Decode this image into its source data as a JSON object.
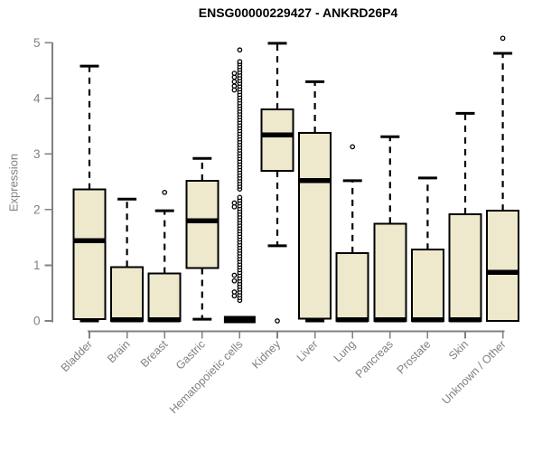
{
  "chart_data": {
    "type": "boxplot",
    "title": "ENSG00000229427 - ANKRD26P4",
    "ylabel": "Expression",
    "xlabel": "",
    "ylim": [
      0,
      5.35
    ],
    "yticks": [
      "0",
      "1",
      "2",
      "3",
      "4",
      "5"
    ],
    "grid": false,
    "legend": "none",
    "categories": [
      "Bladder",
      "Brain",
      "Breast",
      "Gastric",
      "Hematopoietic cells",
      "Kidney",
      "Liver",
      "Lung",
      "Pancreas",
      "Prostate",
      "Skin",
      "Unknown / Other"
    ],
    "series": [
      {
        "name": "Bladder",
        "lo": 0,
        "q1": 0.03,
        "med": 1.44,
        "q3": 2.36,
        "hi": 4.58,
        "outliers": []
      },
      {
        "name": "Brain",
        "lo": 0,
        "q1": 0,
        "med": 0.02,
        "q3": 0.97,
        "hi": 2.19,
        "outliers": []
      },
      {
        "name": "Breast",
        "lo": 0,
        "q1": 0,
        "med": 0.02,
        "q3": 0.85,
        "hi": 1.98,
        "outliers": [
          2.31
        ]
      },
      {
        "name": "Gastric",
        "lo": 0.03,
        "q1": 0.95,
        "med": 1.8,
        "q3": 2.52,
        "hi": 2.92,
        "outliers": []
      },
      {
        "name": "Hematopoietic cells",
        "collapsed": true,
        "lo": 0,
        "q1": 0,
        "med": 0,
        "q3": 0,
        "hi": 0,
        "outliers": [
          0.37,
          0.42,
          0.47,
          0.52,
          0.57,
          0.62,
          0.67,
          0.72,
          0.77,
          0.82,
          0.87,
          0.92,
          0.97,
          1.02,
          1.07,
          1.12,
          1.17,
          1.22,
          1.27,
          1.32,
          1.37,
          1.42,
          1.47,
          1.52,
          1.57,
          1.62,
          1.67,
          1.72,
          1.77,
          1.82,
          1.87,
          1.92,
          1.97,
          2.02,
          2.07,
          2.12,
          2.17,
          2.22,
          2.37,
          2.42,
          2.47,
          2.52,
          2.57,
          2.62,
          2.67,
          2.72,
          2.77,
          2.82,
          2.87,
          2.92,
          2.97,
          3.02,
          3.07,
          3.12,
          3.17,
          3.22,
          3.27,
          3.32,
          3.37,
          3.42,
          3.47,
          3.52,
          3.57,
          3.62,
          3.67,
          3.72,
          3.77,
          3.82,
          3.87,
          3.92,
          3.97,
          4.02,
          4.07,
          4.12,
          4.17,
          4.22,
          4.27,
          4.32,
          4.37,
          4.42,
          4.47,
          4.52,
          4.57,
          4.62,
          4.66,
          4.87,
          [
            4.45,
            -6
          ],
          [
            4.38,
            -6
          ],
          [
            4.3,
            -6
          ],
          [
            4.22,
            -6
          ],
          [
            4.15,
            -6
          ],
          [
            2.12,
            -6
          ],
          [
            2.05,
            -6
          ],
          [
            0.82,
            -6
          ],
          [
            0.72,
            -6
          ],
          [
            0.52,
            -6
          ],
          [
            0.45,
            -6
          ]
        ]
      },
      {
        "name": "Kidney",
        "lo": 1.35,
        "q1": 2.7,
        "med": 3.34,
        "q3": 3.8,
        "hi": 4.99,
        "outliers": [
          0
        ]
      },
      {
        "name": "Liver",
        "lo": 0,
        "q1": 0.04,
        "med": 2.52,
        "q3": 3.38,
        "hi": 4.3,
        "outliers": []
      },
      {
        "name": "Lung",
        "lo": 0,
        "q1": 0,
        "med": 0.02,
        "q3": 1.22,
        "hi": 2.52,
        "outliers": [
          3.13
        ]
      },
      {
        "name": "Pancreas",
        "lo": 0,
        "q1": 0,
        "med": 0.02,
        "q3": 1.75,
        "hi": 3.31,
        "outliers": []
      },
      {
        "name": "Prostate",
        "lo": 0,
        "q1": 0,
        "med": 0.02,
        "q3": 1.28,
        "hi": 2.57,
        "outliers": []
      },
      {
        "name": "Skin",
        "lo": 0,
        "q1": 0,
        "med": 0.02,
        "q3": 1.92,
        "hi": 3.73,
        "outliers": []
      },
      {
        "name": "Unknown / Other",
        "lo": 0,
        "q1": 0,
        "med": 0.87,
        "q3": 1.98,
        "hi": 4.81,
        "outliers": [
          5.08
        ]
      }
    ],
    "colors": {
      "box_fill": "#EEE8CD",
      "box_stroke": "#000000",
      "median": "#000000",
      "whisker": "#000000",
      "axis": "#808080",
      "title": "#000000",
      "background": "#FFFFFF"
    }
  }
}
